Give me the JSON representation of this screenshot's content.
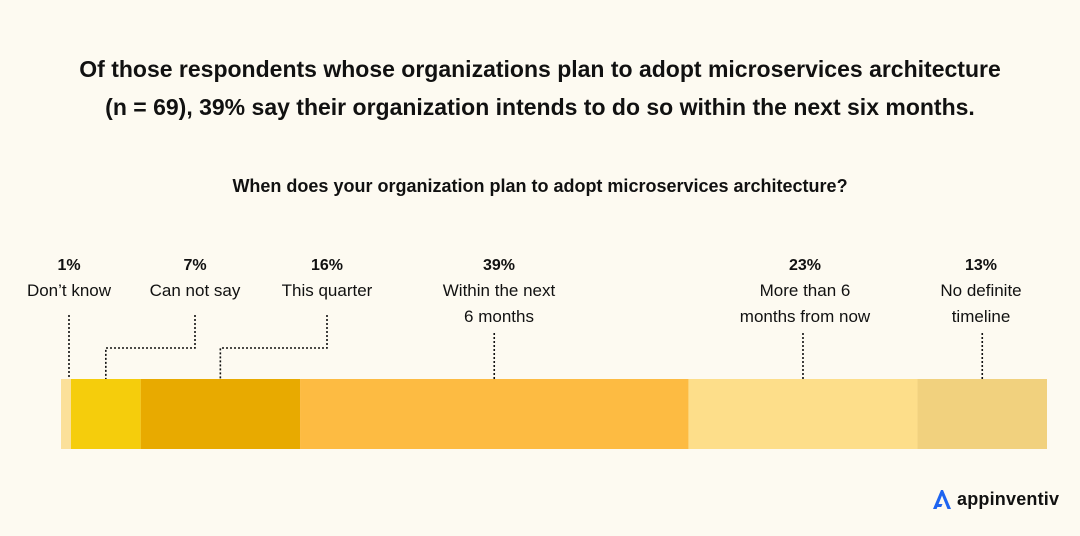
{
  "headline": {
    "line1": "Of those respondents whose organizations plan to adopt microservices architecture",
    "line2_regular": "(n = 69), 39% say their organization intends to do so ",
    "line2_bold": "within the next six months."
  },
  "chart_data": {
    "type": "stacked-bar",
    "title": "When does your organization plan to adopt microservices architecture?",
    "unit": "%",
    "segments": [
      {
        "label": "Don’t know",
        "label_lines": [
          "Don’t know"
        ],
        "value": 1,
        "value_label": "1%",
        "color": "#fbe09a"
      },
      {
        "label": "Can not say",
        "label_lines": [
          "Can not say"
        ],
        "value": 7,
        "value_label": "7%",
        "color": "#f5cd0c"
      },
      {
        "label": "This quarter",
        "label_lines": [
          "This quarter"
        ],
        "value": 16,
        "value_label": "16%",
        "color": "#e8aa00"
      },
      {
        "label": "Within the next 6 months",
        "label_lines": [
          "Within the next",
          "6 months"
        ],
        "value": 39,
        "value_label": "39%",
        "color": "#fdbb42"
      },
      {
        "label": "More than 6 months from now",
        "label_lines": [
          "More than 6",
          "months from now"
        ],
        "value": 23,
        "value_label": "23%",
        "color": "#fdde8a"
      },
      {
        "label": "No definite timeline",
        "label_lines": [
          "No definite",
          "timeline"
        ],
        "value": 13,
        "value_label": "13%",
        "color": "#f1d17e"
      }
    ]
  },
  "brand": {
    "name": "appinventiv",
    "logo_color": "#1e64f0"
  }
}
